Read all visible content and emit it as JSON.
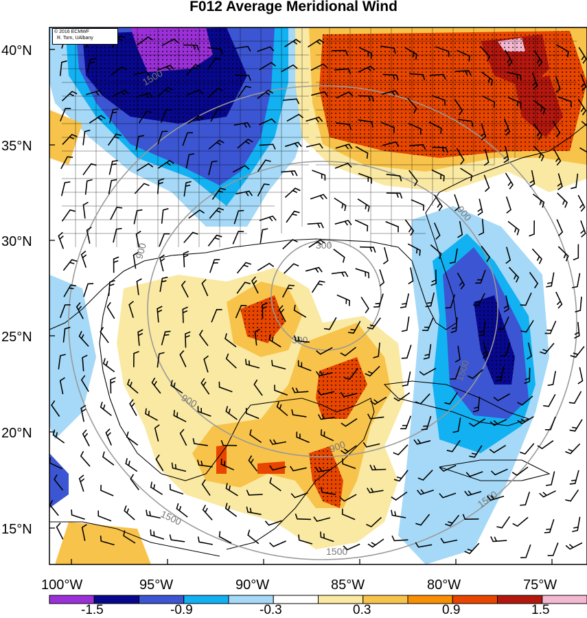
{
  "title": "F012 Average Meridional Wind",
  "credit": {
    "line1": "© 2016 ECMWF",
    "line2": "R. Torn, UAlbany"
  },
  "lat_labels": [
    "40°N",
    "35°N",
    "30°N",
    "25°N",
    "20°N",
    "15°N"
  ],
  "lon_labels": [
    "100°W",
    "95°W",
    "90°W",
    "85°W",
    "80°W",
    "75°W"
  ],
  "contour_labels": [
    "1500",
    "900",
    "300",
    "300",
    "900",
    "900",
    "900",
    "1500",
    "1500",
    "1500"
  ],
  "colorbar": {
    "tick_labels": [
      "-1.5",
      "-0.9",
      "-0.3",
      "0.3",
      "0.9",
      "1.5"
    ],
    "colors": [
      "#9b30d8",
      "#08088e",
      "#3c55d2",
      "#12b1f2",
      "#a5d9f7",
      "#ffffff",
      "#fae9a2",
      "#f8c34a",
      "#f98f02",
      "#e84500",
      "#b3170d",
      "#f4b8d0"
    ]
  }
}
